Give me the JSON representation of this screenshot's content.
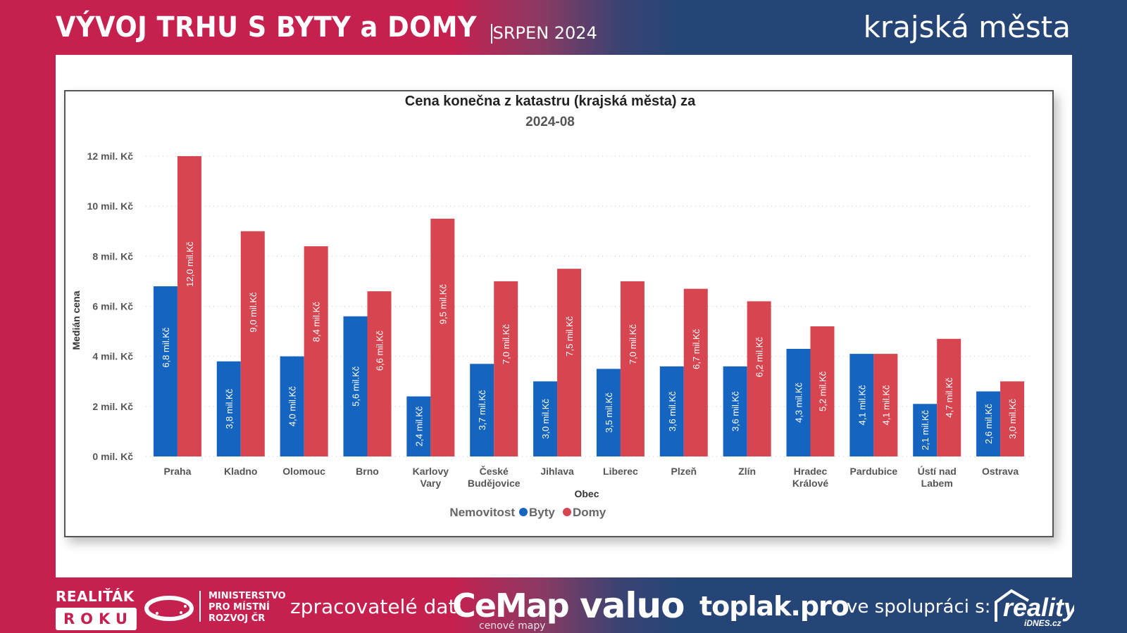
{
  "header": {
    "title": "VÝVOJ TRHU S BYTY a DOMY",
    "subtitle": "SRPEN 2024",
    "right_label": "krajská města"
  },
  "footer": {
    "realitak": "REALIŤÁK",
    "roku": "ROKU",
    "ministry": [
      "MINISTERSTVO",
      "PRO MÍSTNÍ",
      "ROZVOJ ČR"
    ],
    "processors_label": "zpracovatelé dat:",
    "cemap": "CeMap",
    "cemap_sub": "cenové mapy",
    "valuo": "valuo",
    "toplak": "toplak.pro",
    "cooperation_label": "ve spolupráci s:",
    "reality": "reality",
    "reality_sub": "iDNES.cz"
  },
  "colors": {
    "byty": "#1565c0",
    "domy": "#d64550",
    "brand_red": "#c6204f",
    "brand_blue": "#264577"
  },
  "chart_data": {
    "type": "bar",
    "title": "Cena konečna z katastru (krajská města) za",
    "subtitle": "2024-08",
    "xlabel": "Obec",
    "ylabel": "Medián cena",
    "ylim": [
      0,
      12
    ],
    "yticks": [
      0,
      2,
      4,
      6,
      8,
      10,
      12
    ],
    "ytick_labels": [
      "0 mil. Kč",
      "2 mil. Kč",
      "4 mil. Kč",
      "6 mil. Kč",
      "8 mil. Kč",
      "10 mil. Kč",
      "12 mil. Kč"
    ],
    "grid": true,
    "legend_title": "Nemovitost",
    "legend_position": "bottom-center",
    "categories": [
      [
        "Praha"
      ],
      [
        "Kladno"
      ],
      [
        "Olomouc"
      ],
      [
        "Brno"
      ],
      [
        "Karlovy",
        "Vary"
      ],
      [
        "České",
        "Budějovice"
      ],
      [
        "Jihlava"
      ],
      [
        "Liberec"
      ],
      [
        "Plzeň"
      ],
      [
        "Zlín"
      ],
      [
        "Hradec",
        "Králové"
      ],
      [
        "Pardubice"
      ],
      [
        "Ústí nad",
        "Labem"
      ],
      [
        "Ostrava"
      ]
    ],
    "series": [
      {
        "name": "Byty",
        "values": [
          6.8,
          3.8,
          4.0,
          5.6,
          2.4,
          3.7,
          3.0,
          3.5,
          3.6,
          3.6,
          4.3,
          4.1,
          2.1,
          2.6
        ],
        "labels": [
          "6,8 mil.Kč",
          "3,8 mil.Kč",
          "4,0 mil.Kč",
          "5,6 mil.Kč",
          "2,4 mil.Kč",
          "3,7 mil.Kč",
          "3,0 mil.Kč",
          "3,5 mil.Kč",
          "3,6 mil.Kč",
          "3,6 mil.Kč",
          "4,3 mil.Kč",
          "4,1 mil.Kč",
          "2,1 mil.Kč",
          "2,6 mil.Kč"
        ]
      },
      {
        "name": "Domy",
        "values": [
          12.0,
          9.0,
          8.4,
          6.6,
          9.5,
          7.0,
          7.5,
          7.0,
          6.7,
          6.2,
          5.2,
          4.1,
          4.7,
          3.0
        ],
        "labels": [
          "12,0 mil.Kč",
          "9,0 mil.Kč",
          "8,4 mil.Kč",
          "6,6 mil.Kč",
          "9,5 mil.Kč",
          "7,0 mil.Kč",
          "7,5 mil.Kč",
          "7,0 mil.Kč",
          "6,7 mil.Kč",
          "6,2 mil.Kč",
          "5,2 mil.Kč",
          "4,1 mil.Kč",
          "4,7 mil.Kč",
          "3,0 mil.Kč"
        ]
      }
    ]
  }
}
